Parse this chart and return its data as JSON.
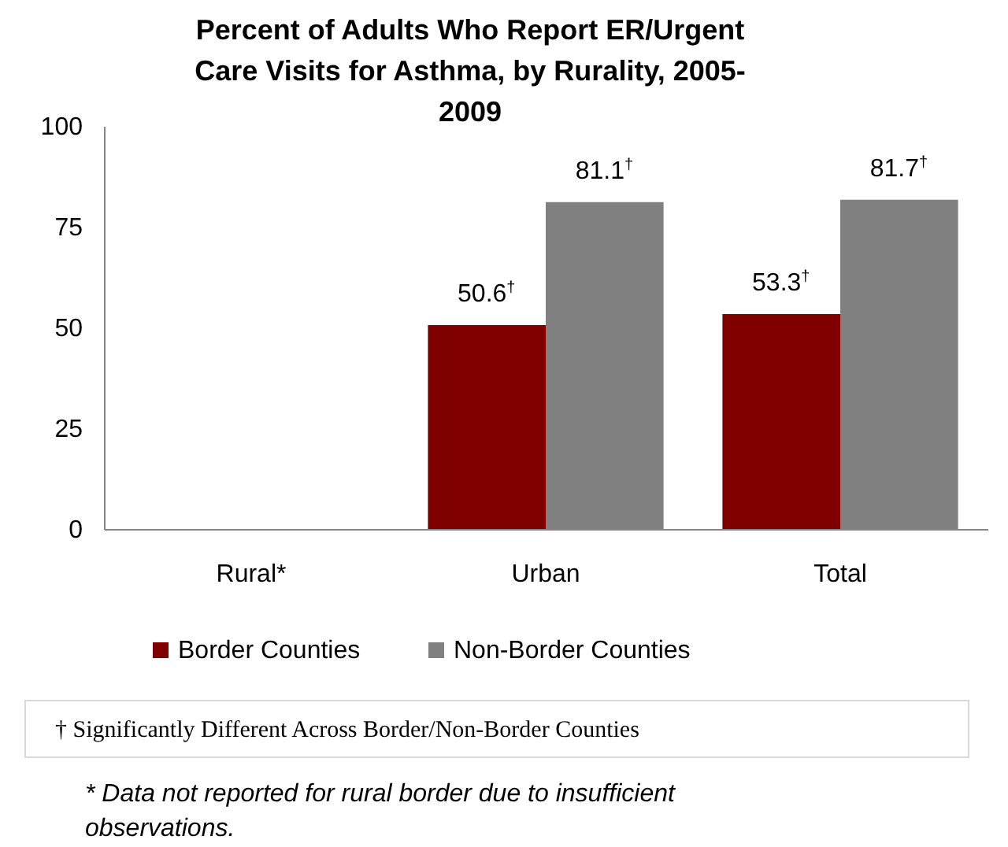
{
  "chart_data": {
    "type": "bar",
    "title": "Percent of  Adults Who Report ER/Urgent Care Visits for Asthma, by Rurality, 2005-2009",
    "categories": [
      "Rural*",
      "Urban",
      "Total"
    ],
    "series": [
      {
        "name": "Border Counties",
        "color": "#800000",
        "values": [
          null,
          50.6,
          53.3
        ],
        "value_labels": [
          null,
          "50.6$^{†}$",
          "53.3$^{†}$"
        ]
      },
      {
        "name": "Non-Border Counties",
        "color": "#808080",
        "values": [
          null,
          81.1,
          81.7
        ],
        "value_labels": [
          null,
          "81.1$^{†}$",
          "81.7$^{†}$"
        ]
      }
    ],
    "ylim": [
      0,
      100
    ],
    "yticks": [
      0,
      25,
      50,
      75,
      100
    ],
    "grid": false,
    "legend": "bottom",
    "annotations": [
      "† Significantly Different Across Border/Non-Border Counties",
      "* Data not reported for rural border due to insufficient observations."
    ]
  }
}
